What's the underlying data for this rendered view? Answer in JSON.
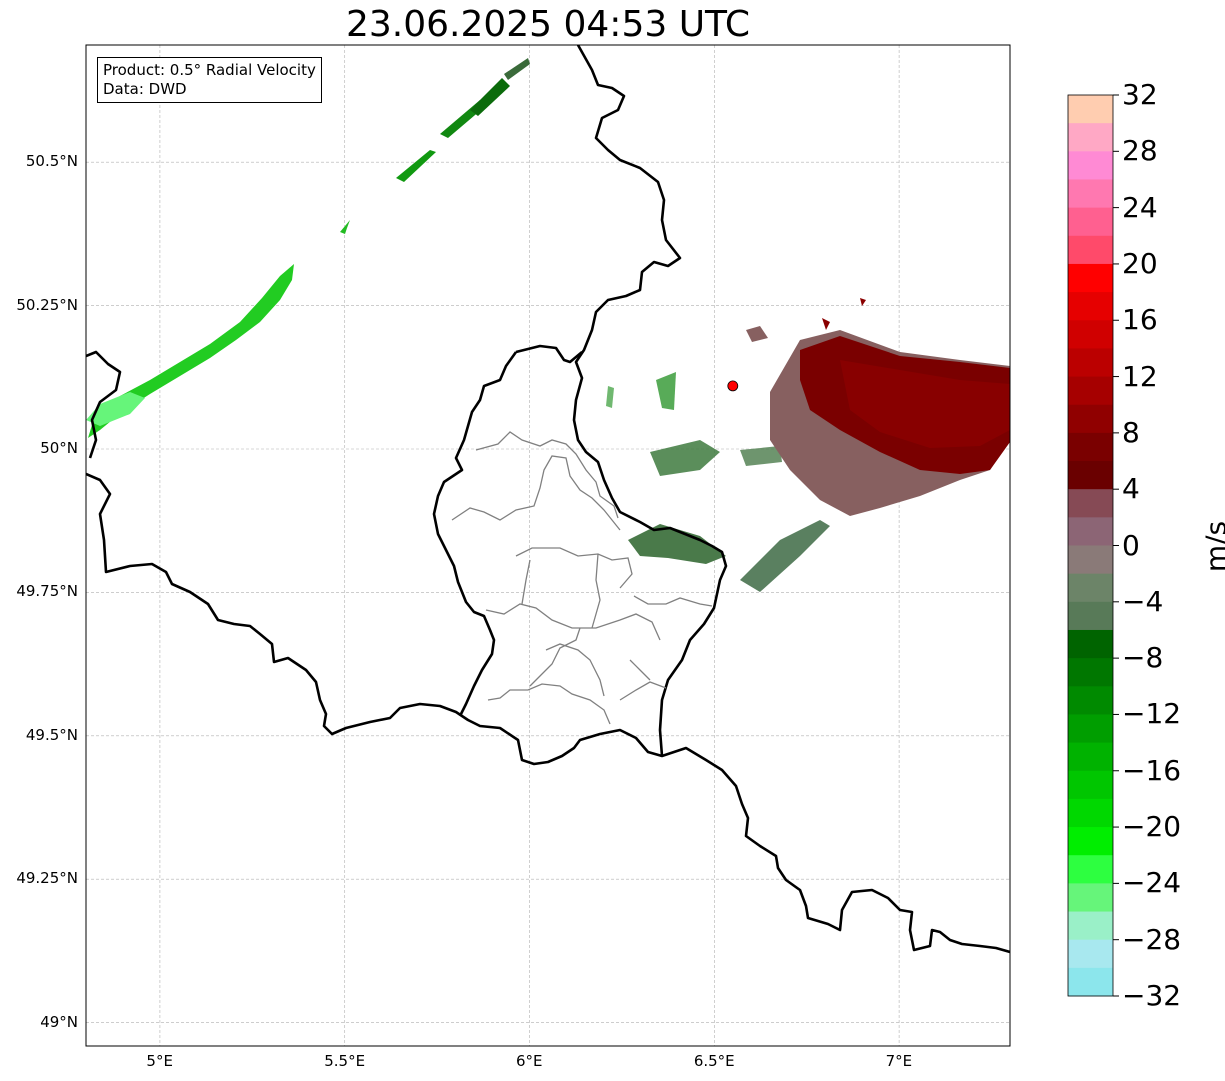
{
  "title": "23.06.2025 04:53 UTC",
  "info": {
    "product": "Product: 0.5° Radial Velocity",
    "source": "Data: DWD"
  },
  "map_extent": {
    "lon": [
      4.8,
      7.3
    ],
    "lat": [
      48.95,
      50.7
    ]
  },
  "grid": true,
  "lat_ticks": [
    {
      "value": 50.5,
      "label": "50.5°N"
    },
    {
      "value": 50.25,
      "label": "50.25°N"
    },
    {
      "value": 50.0,
      "label": "50°N"
    },
    {
      "value": 49.75,
      "label": "49.75°N"
    },
    {
      "value": 49.5,
      "label": "49.5°N"
    },
    {
      "value": 49.25,
      "label": "49.25°N"
    },
    {
      "value": 49.0,
      "label": "49°N"
    }
  ],
  "lon_ticks": [
    {
      "value": 5.0,
      "label": "5°E"
    },
    {
      "value": 5.5,
      "label": "5.5°E"
    },
    {
      "value": 6.0,
      "label": "6°E"
    },
    {
      "value": 6.5,
      "label": "6.5°E"
    },
    {
      "value": 7.0,
      "label": "7°E"
    }
  ],
  "radar_site": {
    "lon": 6.55,
    "lat": 50.11,
    "color": "#ff0000"
  },
  "colorbar": {
    "unit": "m/s",
    "range": [
      -32,
      32
    ],
    "step": 2,
    "tick_labels": [
      "32",
      "28",
      "24",
      "20",
      "16",
      "12",
      "8",
      "4",
      "0",
      "−4",
      "−8",
      "−12",
      "−16",
      "−20",
      "−24",
      "−28",
      "−32"
    ],
    "colors_top_to_bottom": [
      "#ffcdb0",
      "#ffa8c5",
      "#ff8ad4",
      "#ff78b0",
      "#ff6090",
      "#ff4a6a",
      "#ff0000",
      "#e60000",
      "#d00000",
      "#bb0000",
      "#a60000",
      "#900000",
      "#7a0000",
      "#6a0000",
      "#864a55",
      "#8c6575",
      "#8a7a78",
      "#6c8468",
      "#587a58",
      "#006400",
      "#007700",
      "#008a00",
      "#009e00",
      "#00b200",
      "#00c600",
      "#00d800",
      "#00ee00",
      "#2dff40",
      "#66f57a",
      "#9af0c8",
      "#a8e8ef",
      "#8ce6ec"
    ]
  }
}
